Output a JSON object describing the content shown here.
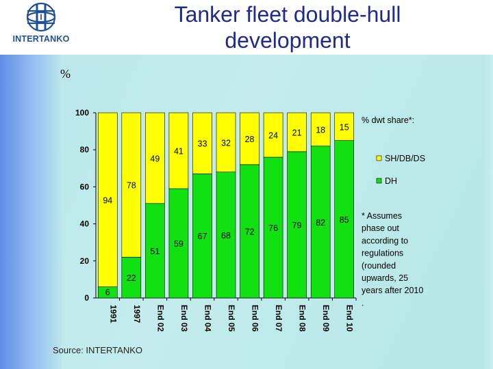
{
  "slide": {
    "title_line1": "Tanker fleet double-hull",
    "title_line2": "development",
    "percent_label": "%",
    "source": "Source: INTERTANKO",
    "logo_text": "INTERTANKO"
  },
  "colors": {
    "dh": "#11e011",
    "sh": "#ffff00",
    "title": "#1f2a8c",
    "logo": "#1f4f99"
  },
  "legend": {
    "header": "% dwt share*:",
    "items": [
      {
        "label": "SH/DB/DS",
        "color": "#ffff00"
      },
      {
        "label": "DH",
        "color": "#11e011"
      }
    ],
    "note_lines": [
      "* Assumes",
      "phase out",
      "according to",
      "regulations",
      "(rounded",
      "upwards, 25",
      "years after 2010",
      "."
    ]
  },
  "chart_data": {
    "type": "bar",
    "stacked": true,
    "categories": [
      "1991",
      "1997",
      "End 02",
      "End 03",
      "End 04",
      "End 05",
      "End 06",
      "End 07",
      "End 08",
      "End 09",
      "End 10"
    ],
    "series": [
      {
        "name": "DH",
        "values": [
          6,
          22,
          51,
          59,
          67,
          68,
          72,
          76,
          79,
          82,
          85
        ]
      },
      {
        "name": "SH/DB/DS",
        "values": [
          94,
          78,
          49,
          41,
          33,
          32,
          28,
          24,
          21,
          18,
          15
        ]
      }
    ],
    "y_ticks": [
      0,
      20,
      40,
      60,
      80,
      100
    ],
    "ylim": [
      0,
      100
    ],
    "ylabel": "%",
    "legend_position": "right",
    "grid": false
  }
}
